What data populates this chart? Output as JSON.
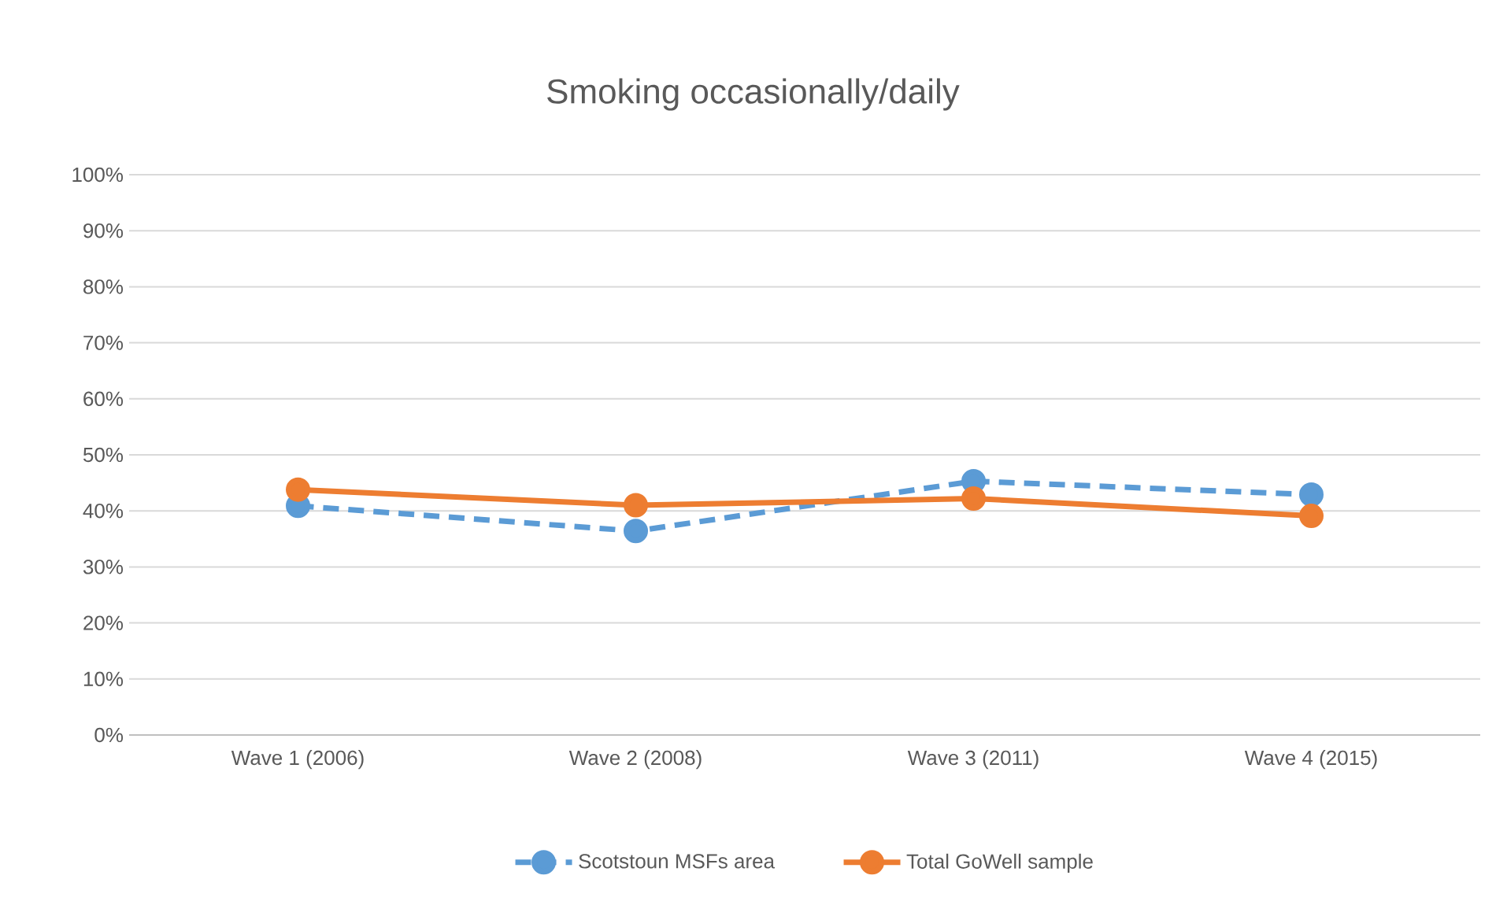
{
  "chart_data": {
    "type": "line",
    "title": "Smoking occasionally/daily",
    "categories": [
      "Wave 1 (2006)",
      "Wave 2 (2008)",
      "Wave 3 (2011)",
      "Wave 4 (2015)"
    ],
    "series": [
      {
        "name": "Scotstoun MSFs area",
        "color": "#5b9bd5",
        "values": [
          40.9,
          36.4,
          45.3,
          42.9
        ],
        "line_style": "dashed"
      },
      {
        "name": "Total GoWell sample",
        "color": "#ed7d31",
        "values": [
          43.8,
          41.0,
          42.2,
          39.1
        ],
        "line_style": "solid"
      }
    ],
    "ylim": [
      0,
      100
    ],
    "yticks": [
      {
        "value": 0,
        "label": "0%"
      },
      {
        "value": 10,
        "label": "10%"
      },
      {
        "value": 20,
        "label": "20%"
      },
      {
        "value": 30,
        "label": "30%"
      },
      {
        "value": 40,
        "label": "40%"
      },
      {
        "value": 50,
        "label": "50%"
      },
      {
        "value": 60,
        "label": "60%"
      },
      {
        "value": 70,
        "label": "70%"
      },
      {
        "value": 80,
        "label": "80%"
      },
      {
        "value": 90,
        "label": "90%"
      },
      {
        "value": 100,
        "label": "100%"
      }
    ],
    "grid": "y",
    "legend": "bottom",
    "marker": "circle"
  }
}
